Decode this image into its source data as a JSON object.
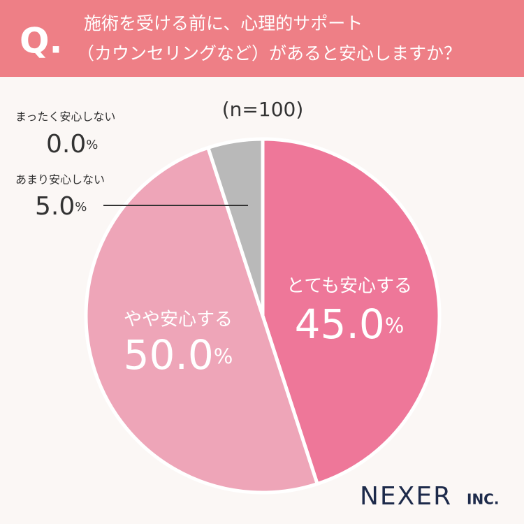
{
  "chart_data": {
    "type": "pie",
    "title_prefix": "Q.",
    "title_lines": [
      "施術を受ける前に、心理的サポート",
      "（カウンセリングなど）があると安心しますか？"
    ],
    "subtitle": "(n=100)",
    "categories": [
      "とても安心する",
      "やや安心する",
      "あまり安心しない",
      "まったく安心しない"
    ],
    "values": [
      45,
      50,
      5,
      0
    ],
    "value_labels": [
      "45.0%",
      "50.0%",
      "5.0%",
      "0.0%"
    ],
    "colors": [
      "#ee7799",
      "#eea5b8",
      "#b9b9b9",
      "#dddddd"
    ],
    "logo": "NEXER",
    "logo_suffix": "INC."
  }
}
